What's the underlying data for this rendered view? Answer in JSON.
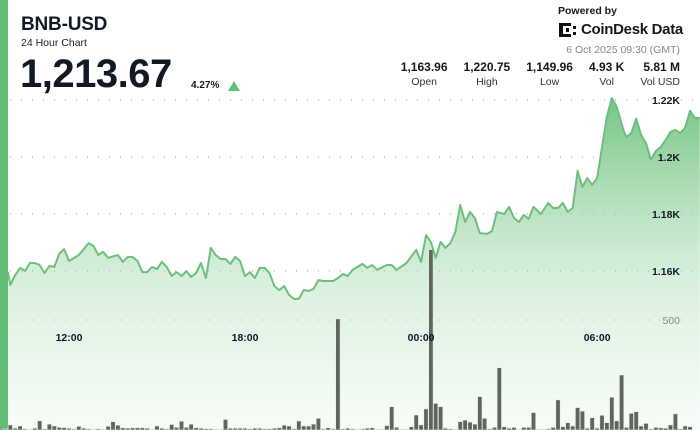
{
  "header": {
    "symbol": "BNB-USD",
    "subtitle": "24 Hour Chart",
    "price": "1,213.67",
    "change": "4.27%",
    "change_direction": "up",
    "powered_by": "Powered by",
    "brand": "CoinDesk Data",
    "timestamp": "6 Oct 2025 09:30 (GMT)"
  },
  "stats": [
    {
      "value": "1,163.96",
      "label": "Open"
    },
    {
      "value": "1,220.75",
      "label": "High"
    },
    {
      "value": "1,149.96",
      "label": "Low"
    },
    {
      "value": "4.93 K",
      "label": "Vol"
    },
    {
      "value": "5.81 M",
      "label": "Vol USD"
    }
  ],
  "colors": {
    "accent": "#62be77",
    "line": "#6cc07c",
    "volume": "#5e665e",
    "up": "#5fbf77"
  },
  "chart_data": {
    "type": "area",
    "x_ticks": [
      "12:00",
      "18:00",
      "00:00",
      "06:00"
    ],
    "y_ticks": [
      {
        "value": 1220,
        "label": "1.22K"
      },
      {
        "value": 1200,
        "label": "1.2K"
      },
      {
        "value": 1180,
        "label": "1.18K"
      },
      {
        "value": 1160,
        "label": "1.16K"
      }
    ],
    "volume_ticks": [
      {
        "value": 500,
        "label": "500"
      }
    ],
    "grid": true,
    "price": [
      [
        "09:55",
        1159.6
      ],
      [
        "10:00",
        1155.1
      ],
      [
        "10:10",
        1158.6
      ],
      [
        "10:20",
        1161.1
      ],
      [
        "10:30",
        1160.0
      ],
      [
        "10:40",
        1162.8
      ],
      [
        "10:50",
        1162.8
      ],
      [
        "11:00",
        1162.1
      ],
      [
        "11:10",
        1159.3
      ],
      [
        "11:20",
        1161.8
      ],
      [
        "11:30",
        1161.4
      ],
      [
        "11:40",
        1166.0
      ],
      [
        "11:50",
        1167.7
      ],
      [
        "12:00",
        1163.5
      ],
      [
        "12:20",
        1165.6
      ],
      [
        "12:30",
        1167.7
      ],
      [
        "12:40",
        1169.8
      ],
      [
        "12:50",
        1168.8
      ],
      [
        "13:00",
        1165.6
      ],
      [
        "13:10",
        1166.7
      ],
      [
        "13:20",
        1164.6
      ],
      [
        "13:40",
        1165.6
      ],
      [
        "13:50",
        1163.2
      ],
      [
        "14:00",
        1164.9
      ],
      [
        "14:10",
        1164.9
      ],
      [
        "14:20",
        1163.5
      ],
      [
        "14:30",
        1159.6
      ],
      [
        "14:40",
        1159.6
      ],
      [
        "14:50",
        1161.4
      ],
      [
        "15:00",
        1160.7
      ],
      [
        "15:10",
        1163.2
      ],
      [
        "15:20",
        1161.4
      ],
      [
        "15:30",
        1158.2
      ],
      [
        "15:40",
        1159.6
      ],
      [
        "15:50",
        1158.2
      ],
      [
        "16:00",
        1160.0
      ],
      [
        "16:10",
        1157.9
      ],
      [
        "16:20",
        1159.3
      ],
      [
        "16:30",
        1162.8
      ],
      [
        "16:40",
        1157.5
      ],
      [
        "16:50",
        1168.1
      ],
      [
        "17:00",
        1165.6
      ],
      [
        "17:10",
        1164.2
      ],
      [
        "17:20",
        1164.2
      ],
      [
        "17:30",
        1162.5
      ],
      [
        "17:40",
        1164.9
      ],
      [
        "17:50",
        1163.5
      ],
      [
        "18:00",
        1158.2
      ],
      [
        "18:10",
        1159.6
      ],
      [
        "18:20",
        1157.5
      ],
      [
        "18:30",
        1161.1
      ],
      [
        "18:40",
        1161.1
      ],
      [
        "18:50",
        1159.3
      ],
      [
        "19:00",
        1154.7
      ],
      [
        "19:10",
        1153.3
      ],
      [
        "19:20",
        1154.7
      ],
      [
        "19:30",
        1151.6
      ],
      [
        "19:40",
        1150.2
      ],
      [
        "19:50",
        1150.2
      ],
      [
        "20:00",
        1153.3
      ],
      [
        "20:10",
        1153.0
      ],
      [
        "20:20",
        1153.7
      ],
      [
        "20:30",
        1156.8
      ],
      [
        "20:40",
        1156.5
      ],
      [
        "21:00",
        1156.5
      ],
      [
        "21:10",
        1157.5
      ],
      [
        "21:20",
        1158.9
      ],
      [
        "21:30",
        1158.2
      ],
      [
        "21:40",
        1160.4
      ],
      [
        "22:00",
        1162.5
      ],
      [
        "22:10",
        1161.1
      ],
      [
        "22:20",
        1162.1
      ],
      [
        "22:30",
        1160.4
      ],
      [
        "22:50",
        1162.1
      ],
      [
        "23:00",
        1162.1
      ],
      [
        "23:10",
        1160.4
      ],
      [
        "23:30",
        1162.8
      ],
      [
        "23:50",
        1167.4
      ],
      [
        "00:00",
        1163.2
      ],
      [
        "00:10",
        1172.6
      ],
      [
        "00:20",
        1170.2
      ],
      [
        "00:30",
        1164.6
      ],
      [
        "00:40",
        1170.2
      ],
      [
        "00:50",
        1168.1
      ],
      [
        "01:00",
        1169.8
      ],
      [
        "01:10",
        1173.7
      ],
      [
        "01:20",
        1183.2
      ],
      [
        "01:30",
        1177.2
      ],
      [
        "01:40",
        1180.7
      ],
      [
        "01:50",
        1178.6
      ],
      [
        "02:00",
        1173.3
      ],
      [
        "02:15",
        1173.0
      ],
      [
        "02:25",
        1174.0
      ],
      [
        "02:35",
        1180.7
      ],
      [
        "02:50",
        1180.0
      ],
      [
        "03:00",
        1182.5
      ],
      [
        "03:10",
        1178.6
      ],
      [
        "03:20",
        1177.2
      ],
      [
        "03:30",
        1179.7
      ],
      [
        "03:40",
        1178.3
      ],
      [
        "03:50",
        1182.5
      ],
      [
        "04:05",
        1180.0
      ],
      [
        "04:20",
        1183.9
      ],
      [
        "04:30",
        1182.1
      ],
      [
        "04:40",
        1182.1
      ],
      [
        "04:50",
        1183.9
      ],
      [
        "05:00",
        1180.7
      ],
      [
        "05:10",
        1182.1
      ],
      [
        "05:20",
        1195.1
      ],
      [
        "05:30",
        1189.5
      ],
      [
        "05:40",
        1192.6
      ],
      [
        "05:50",
        1190.2
      ],
      [
        "06:00",
        1192.6
      ],
      [
        "06:10",
        1203.5
      ],
      [
        "06:20",
        1214.1
      ],
      [
        "06:30",
        1220.7
      ],
      [
        "06:40",
        1217.6
      ],
      [
        "06:55",
        1208.8
      ],
      [
        "07:00",
        1207.0
      ],
      [
        "07:10",
        1208.4
      ],
      [
        "07:20",
        1213.4
      ],
      [
        "07:30",
        1207.7
      ],
      [
        "07:40",
        1204.9
      ],
      [
        "07:50",
        1199.0
      ],
      [
        "08:00",
        1202.1
      ],
      [
        "08:10",
        1203.5
      ],
      [
        "08:20",
        1206.0
      ],
      [
        "08:30",
        1208.8
      ],
      [
        "08:40",
        1209.5
      ],
      [
        "08:50",
        1208.4
      ],
      [
        "09:00",
        1210.2
      ],
      [
        "09:10",
        1216.2
      ],
      [
        "09:20",
        1213.7
      ],
      [
        "09:30",
        1213.7
      ]
    ],
    "volume_start": "09:50",
    "volume_interval_minutes": 10,
    "volume": [
      5,
      23,
      8,
      18,
      5,
      3,
      8,
      42,
      5,
      27,
      18,
      12,
      11,
      8,
      5,
      17,
      8,
      5,
      3,
      5,
      3,
      17,
      38,
      22,
      10,
      8,
      10,
      10,
      10,
      8,
      3,
      18,
      8,
      5,
      25,
      12,
      40,
      12,
      27,
      10,
      8,
      6,
      5,
      3,
      3,
      48,
      8,
      8,
      8,
      8,
      5,
      8,
      8,
      5,
      5,
      8,
      10,
      22,
      18,
      5,
      41,
      18,
      18,
      27,
      53,
      5,
      10,
      5,
      505,
      5,
      8,
      5,
      3,
      5,
      8,
      10,
      3,
      3,
      20,
      106,
      12,
      3,
      3,
      15,
      68,
      23,
      96,
      820,
      121,
      106,
      8,
      5,
      3,
      38,
      45,
      36,
      27,
      152,
      53,
      5,
      12,
      283,
      15,
      8,
      12,
      3,
      12,
      12,
      79,
      3,
      3,
      5,
      12,
      137,
      15,
      33,
      18,
      102,
      86,
      8,
      56,
      8,
      67,
      33,
      149,
      42,
      250,
      12,
      76,
      83,
      18,
      30,
      5,
      12,
      10,
      8,
      23,
      73,
      5,
      18,
      15
    ]
  }
}
